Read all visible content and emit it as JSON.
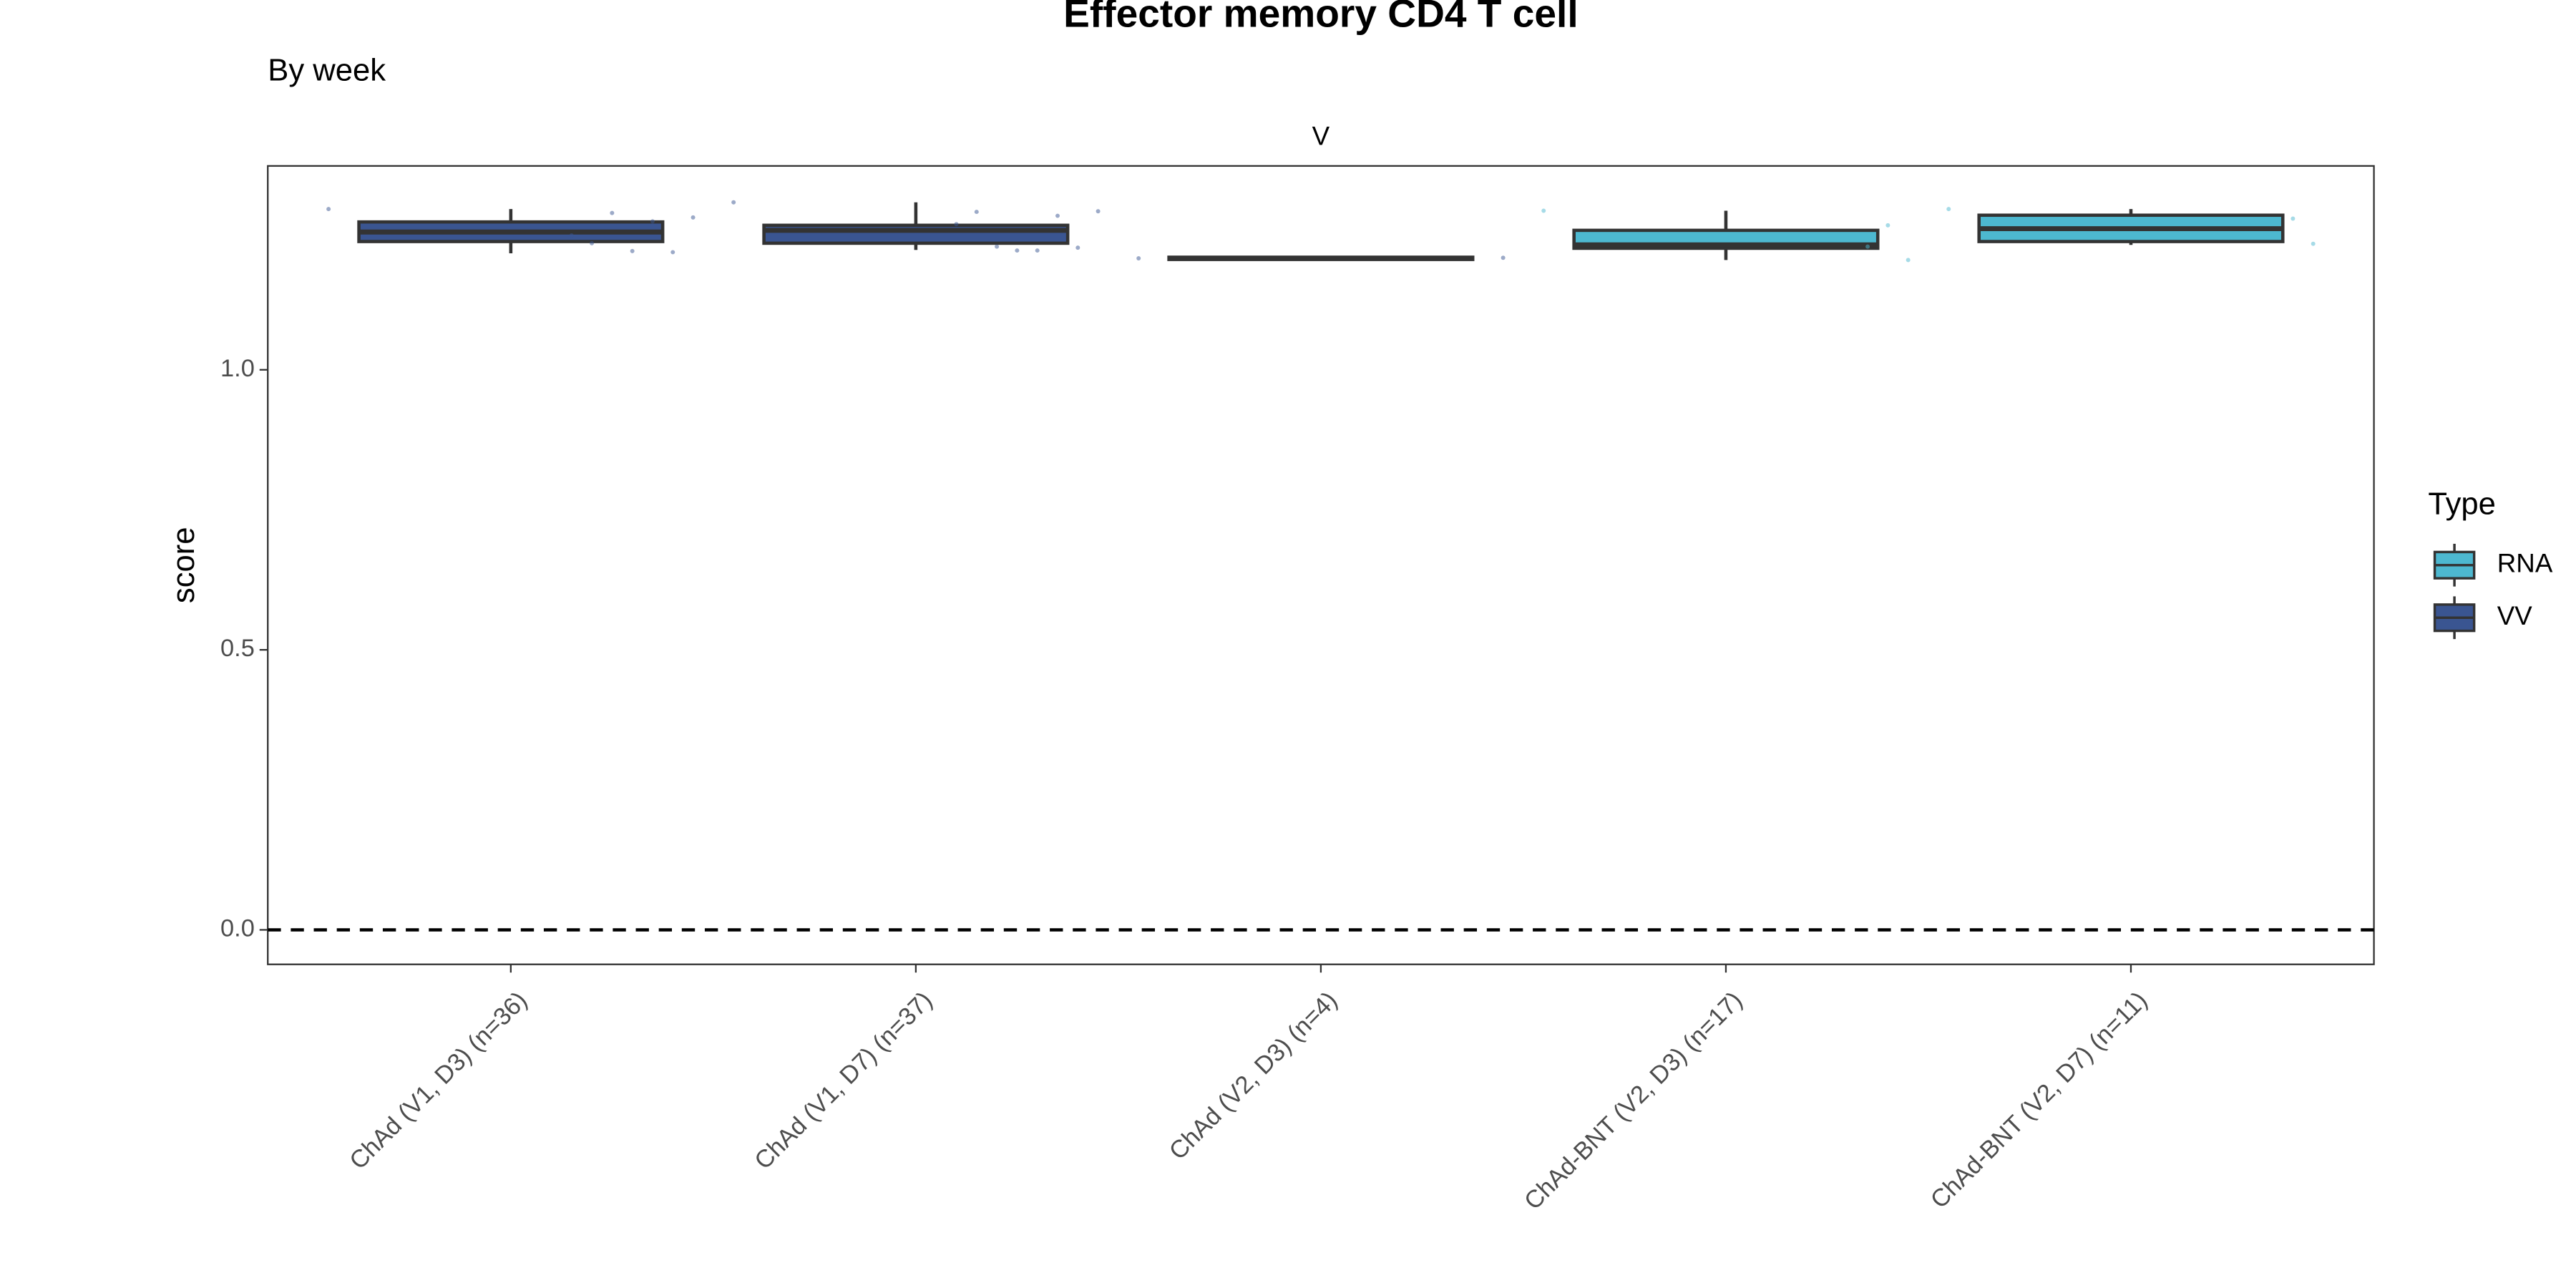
{
  "chart_data": {
    "type": "box",
    "title": "Effector memory CD4 T cell",
    "subtitle": "By week",
    "facet_label": "V",
    "y_label": "score",
    "categories": [
      "ChAd (V1, D3) (n=36)",
      "ChAd (V1, D7) (n=37)",
      "ChAd (V2, D3) (n=4)",
      "ChAd-BNT (V2, D3) (n=17)",
      "ChAd-BNT (V2, D7) (n=11)"
    ],
    "box_type": [
      "VV",
      "VV",
      "VV",
      "RNA",
      "RNA"
    ],
    "boxes": [
      {
        "low": 1.208,
        "q1": 1.229,
        "median": 1.246,
        "q3": 1.264,
        "high": 1.287,
        "points": [
          1.287,
          1.272,
          1.21,
          1.265,
          1.212,
          1.28,
          1.226,
          1.24
        ]
      },
      {
        "low": 1.214,
        "q1": 1.226,
        "median": 1.249,
        "q3": 1.258,
        "high": 1.299,
        "points": [
          1.299,
          1.283,
          1.218,
          1.275,
          1.213,
          1.213,
          1.22,
          1.282,
          1.26
        ]
      },
      {
        "low": 1.195,
        "q1": 1.197,
        "median": 1.199,
        "q3": 1.201,
        "high": 1.203,
        "points": [
          1.199,
          1.2
        ]
      },
      {
        "low": 1.196,
        "q1": 1.217,
        "median": 1.223,
        "q3": 1.249,
        "high": 1.284,
        "points": [
          1.284,
          1.196,
          1.258,
          1.22
        ]
      },
      {
        "low": 1.223,
        "q1": 1.229,
        "median": 1.252,
        "q3": 1.276,
        "high": 1.287,
        "points": [
          1.287,
          1.225,
          1.27
        ]
      }
    ],
    "ylim": [
      -0.0616,
      1.364
    ],
    "yticks": [
      {
        "value": 0,
        "label": "0.0"
      },
      {
        "value": 0.5,
        "label": "0.5"
      },
      {
        "value": 1,
        "label": "1.0"
      }
    ],
    "hline": 0,
    "legend": {
      "title": "Type",
      "position": "right",
      "entries": [
        {
          "name": "RNA",
          "color": "#4db8d0"
        },
        {
          "name": "VV",
          "color": "#3a5591"
        }
      ]
    }
  }
}
